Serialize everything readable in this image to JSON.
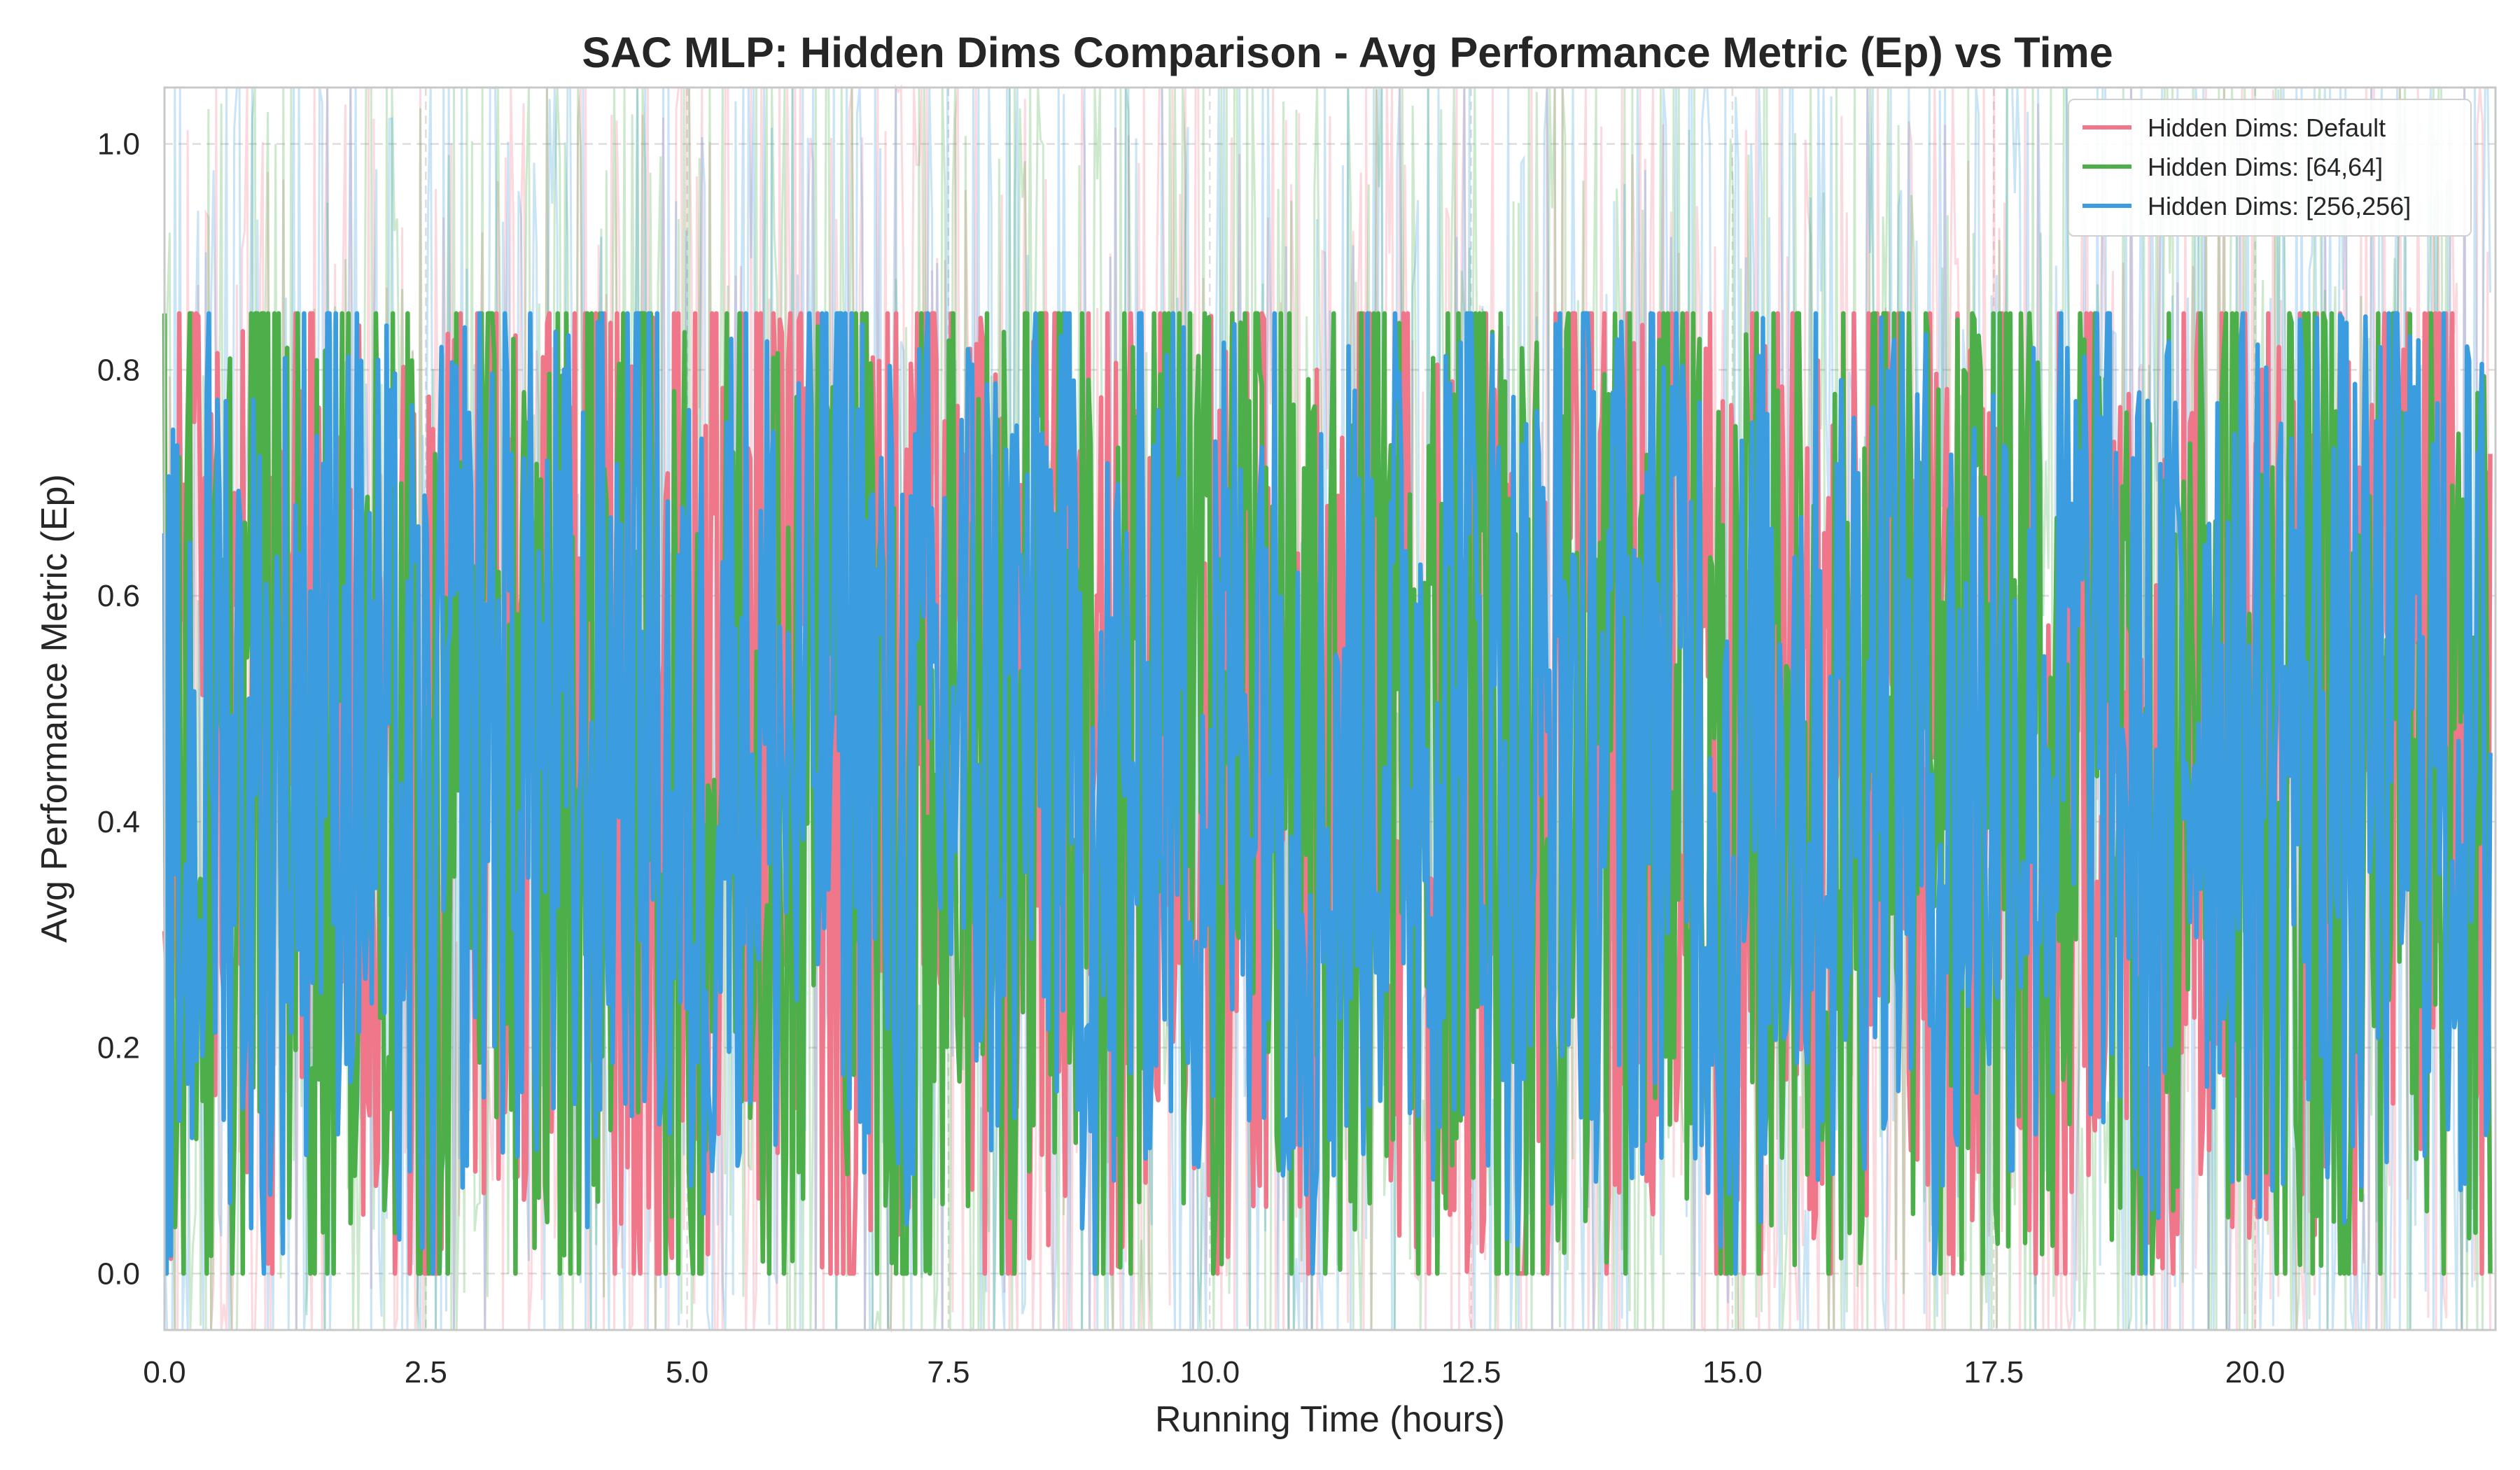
{
  "chart_data": {
    "type": "line",
    "title": "SAC MLP: Hidden Dims Comparison - Avg Performance Metric (Ep) vs Time",
    "xlabel": "Running Time (hours)",
    "ylabel": "Avg Performance Metric (Ep)",
    "xlim": [
      0,
      22.3
    ],
    "ylim": [
      -0.05,
      1.05
    ],
    "xticks": [
      0.0,
      2.5,
      5.0,
      7.5,
      10.0,
      12.5,
      15.0,
      17.5,
      20.0
    ],
    "xtick_labels": [
      "0.0",
      "2.5",
      "5.0",
      "7.5",
      "10.0",
      "12.5",
      "15.0",
      "17.5",
      "20.0"
    ],
    "yticks": [
      0.0,
      0.2,
      0.4,
      0.6,
      0.8,
      1.0
    ],
    "ytick_labels": [
      "0.0",
      "0.2",
      "0.4",
      "0.6",
      "0.8",
      "1.0"
    ],
    "grid": true,
    "legend_position": "top-right",
    "series": [
      {
        "name": "Hidden Dims: Default",
        "color": "#f0778a",
        "x": [
          0.0,
          0.5,
          1.0,
          1.5,
          2.0,
          2.5,
          3.0,
          3.5,
          4.0,
          4.5,
          5.0,
          5.5,
          6.0,
          6.5,
          7.0,
          7.5,
          8.0,
          8.5,
          9.0,
          9.5,
          10.0,
          10.5,
          11.0,
          11.5,
          12.0,
          12.5,
          13.0,
          13.5,
          14.0,
          14.5,
          15.0,
          15.5,
          16.0,
          16.5,
          17.0,
          17.5,
          18.0,
          18.5,
          19.0,
          19.5,
          20.0,
          20.5,
          21.0,
          21.5,
          22.0
        ],
        "values": [
          0.3,
          0.62,
          0.18,
          0.71,
          0.35,
          0.05,
          0.66,
          0.42,
          0.79,
          0.12,
          0.55,
          0.33,
          0.74,
          0.21,
          0.48,
          0.69,
          0.15,
          0.58,
          0.39,
          0.82,
          0.27,
          0.61,
          0.09,
          0.73,
          0.44,
          0.52,
          0.19,
          0.77,
          0.36,
          0.63,
          0.11,
          0.57,
          0.45,
          0.8,
          0.23,
          0.68,
          0.31,
          0.59,
          0.14,
          0.72,
          0.4,
          0.65,
          0.2,
          0.75,
          0.38
        ]
      },
      {
        "name": "Hidden Dims: [64,64]",
        "color": "#4daf4a",
        "x": [
          0.0,
          0.5,
          1.0,
          1.5,
          2.0,
          2.5,
          3.0,
          3.5,
          4.0,
          4.5,
          5.0,
          5.5,
          6.0,
          6.5,
          7.0,
          7.5,
          8.0,
          8.5,
          9.0,
          9.5,
          10.0,
          10.5,
          11.0,
          11.5,
          12.0,
          12.5,
          13.0,
          13.5,
          14.0,
          14.5,
          15.0,
          15.5,
          16.0,
          16.5,
          17.0,
          17.5,
          18.0,
          18.5,
          19.0,
          19.5,
          20.0,
          20.5,
          21.0,
          21.5,
          22.0
        ],
        "values": [
          0.55,
          0.2,
          0.76,
          0.34,
          0.62,
          0.08,
          0.7,
          0.28,
          0.51,
          0.81,
          0.16,
          0.64,
          0.43,
          0.79,
          0.1,
          0.57,
          0.37,
          0.73,
          0.24,
          0.66,
          0.47,
          0.83,
          0.13,
          0.6,
          0.32,
          0.75,
          0.22,
          0.54,
          0.41,
          0.78,
          0.06,
          0.63,
          0.29,
          0.84,
          0.17,
          0.56,
          0.46,
          0.71,
          0.12,
          0.8,
          0.35,
          0.52,
          0.26,
          0.69,
          0.3
        ]
      },
      {
        "name": "Hidden Dims: [256,256]",
        "color": "#3b9de0",
        "x": [
          0.0,
          0.5,
          1.0,
          1.5,
          2.0,
          2.5,
          3.0,
          3.5,
          4.0,
          4.5,
          5.0,
          5.5,
          6.0,
          6.5,
          7.0,
          7.5,
          8.0,
          8.5,
          9.0,
          9.5,
          10.0,
          10.5,
          11.0,
          11.5,
          12.0,
          12.5,
          13.0,
          13.5,
          14.0,
          14.5,
          15.0,
          15.5,
          16.0,
          16.5,
          17.0,
          17.5,
          18.0,
          18.5,
          19.0,
          19.5,
          20.0,
          20.5,
          21.0,
          21.5,
          22.0
        ],
        "values": [
          0.1,
          0.58,
          0.3,
          0.72,
          0.45,
          0.2,
          0.64,
          0.5,
          0.36,
          0.68,
          0.27,
          0.6,
          0.42,
          0.7,
          0.33,
          0.55,
          0.48,
          0.66,
          0.25,
          0.63,
          0.4,
          0.71,
          0.3,
          0.57,
          0.52,
          0.65,
          0.35,
          0.6,
          0.47,
          0.69,
          0.22,
          0.58,
          0.43,
          0.67,
          0.32,
          0.54,
          0.49,
          0.62,
          0.28,
          0.66,
          0.44,
          0.59,
          0.37,
          0.63,
          0.41
        ]
      }
    ]
  }
}
